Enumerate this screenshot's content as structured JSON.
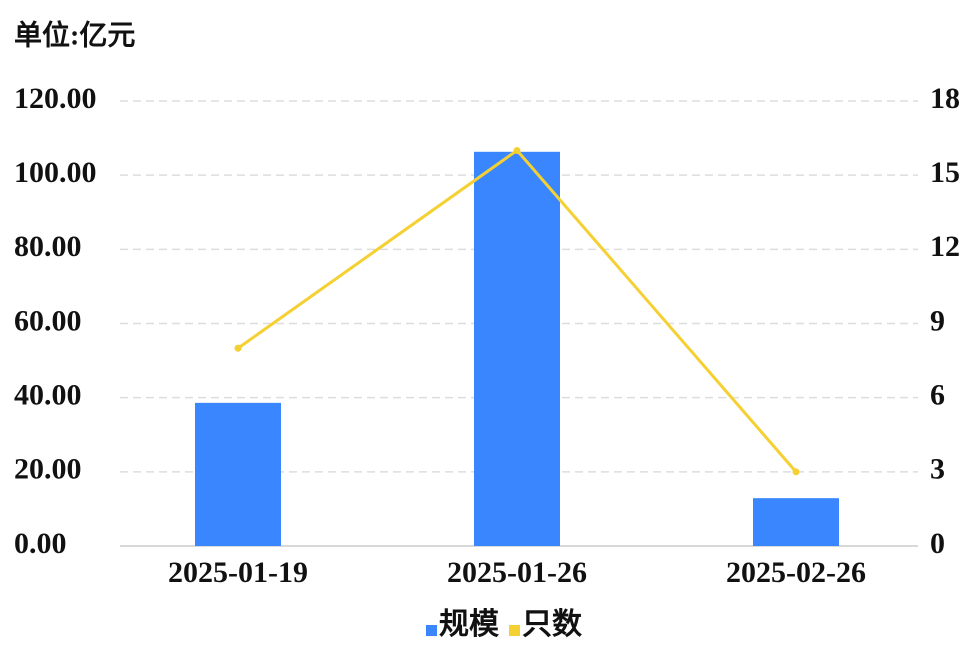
{
  "chart_data": {
    "type": "bar",
    "title": "单位:亿元",
    "categories": [
      "2025-01-19",
      "2025-01-26",
      "2025-02-26"
    ],
    "series": [
      {
        "name": "规模",
        "type": "bar",
        "color": "#3a86ff",
        "values": [
          38.6,
          106.3,
          12.9
        ]
      },
      {
        "name": "只数",
        "type": "line",
        "axis": "y2",
        "color": "#f5d033",
        "values": [
          8,
          16,
          3
        ]
      }
    ],
    "ylim": [
      0,
      120
    ],
    "yticks": [
      {
        "value": 0,
        "label": "0.00"
      },
      {
        "value": 20,
        "label": "20.00"
      },
      {
        "value": 40,
        "label": "40.00"
      },
      {
        "value": 60,
        "label": "60.00"
      },
      {
        "value": 80,
        "label": "80.00"
      },
      {
        "value": 100,
        "label": "100.00"
      },
      {
        "value": 120,
        "label": "120.00"
      }
    ],
    "y2lim": [
      0,
      18
    ],
    "y2ticks": [
      0,
      3,
      6,
      9,
      12,
      15,
      18
    ],
    "grid": true,
    "legend": "bottom"
  }
}
